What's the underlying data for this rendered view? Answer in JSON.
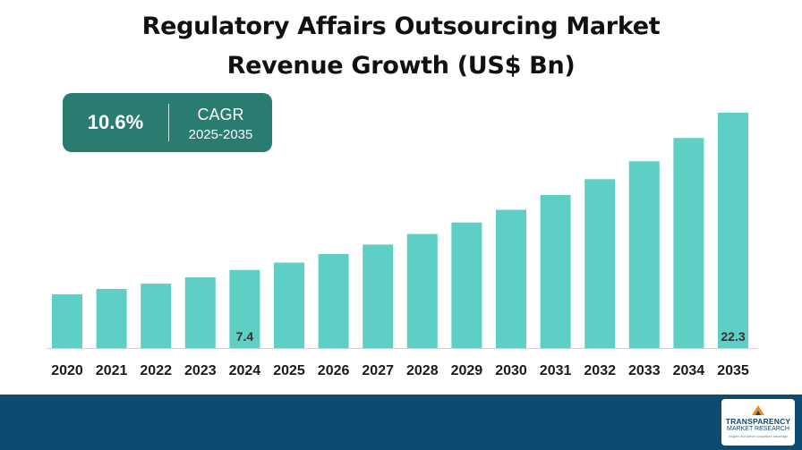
{
  "chart_data": {
    "type": "bar",
    "title": "Regulatory Affairs Outsourcing Market Revenue Growth (US$ Bn)",
    "title_lines": [
      "Regulatory Affairs Outsourcing Market",
      "Revenue Growth (US$ Bn)"
    ],
    "xlabel": "",
    "ylabel": "",
    "categories": [
      "2020",
      "2021",
      "2022",
      "2023",
      "2024",
      "2025",
      "2026",
      "2027",
      "2028",
      "2029",
      "2030",
      "2031",
      "2032",
      "2033",
      "2034",
      "2035"
    ],
    "values": [
      5.1,
      5.6,
      6.1,
      6.7,
      7.4,
      8.1,
      8.9,
      9.8,
      10.8,
      11.9,
      13.1,
      14.5,
      16.0,
      17.7,
      19.9,
      22.3
    ],
    "data_labels": [
      {
        "category": "2024",
        "text": "7.4"
      },
      {
        "category": "2035",
        "text": "22.3"
      }
    ],
    "ylim": [
      0,
      22.3
    ],
    "grid": false,
    "bar_color": "#5ecfc4",
    "annotation": {
      "value": "10.6%",
      "label": "CAGR",
      "period": "2025-2035",
      "color": "#2a7c70"
    }
  },
  "footer": {
    "color": "#0f4a70",
    "logo": {
      "line1": "TRANSPARENCY",
      "line2": "MARKET RESEARCH",
      "line3": "Insights that deliver competitive advantage"
    }
  }
}
